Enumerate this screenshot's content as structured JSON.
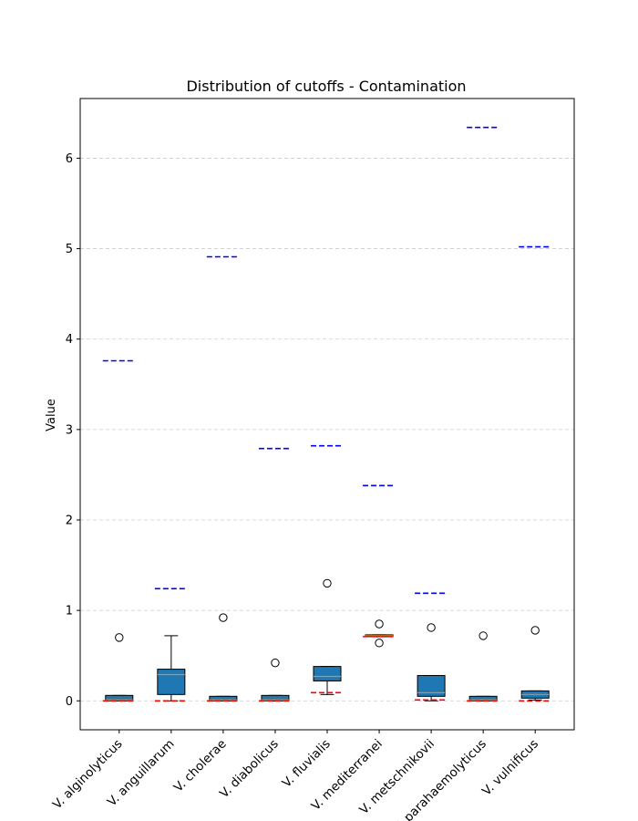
{
  "chart_data": {
    "type": "boxplot",
    "title": "Distribution of cutoffs - Contamination",
    "xlabel": "",
    "ylabel": "Value",
    "ylim": [
      -0.32,
      6.66
    ],
    "yticks": [
      0,
      1,
      2,
      3,
      4,
      5,
      6
    ],
    "grid": "y-dashed",
    "colors": {
      "box": "#1f77b4",
      "median": "#ff7f0e",
      "upper_line": "#0000ff",
      "lower_line": "#ff0000",
      "grid": "#cccccc"
    },
    "categories": [
      "V. alginolyticus",
      "V. anguillarum",
      "V. cholerae",
      "V. diabolicus",
      "V. fluvialis",
      "V. mediterranei",
      "V. metschnikovii",
      "V. parahaemolyticus",
      "V. vulnificus"
    ],
    "boxes": [
      {
        "whislo": 0.0,
        "q1": 0.0,
        "med": 0.01,
        "q3": 0.06,
        "whishi": 0.06,
        "fliers": [
          0.7
        ],
        "upper": 3.76,
        "lower": 0.0
      },
      {
        "whislo": 0.0,
        "q1": 0.07,
        "med": 0.29,
        "q3": 0.35,
        "whishi": 0.72,
        "fliers": [],
        "upper": 1.24,
        "lower": 0.0
      },
      {
        "whislo": 0.0,
        "q1": 0.0,
        "med": 0.01,
        "q3": 0.05,
        "whishi": 0.05,
        "fliers": [
          0.92
        ],
        "upper": 4.91,
        "lower": 0.0
      },
      {
        "whislo": 0.0,
        "q1": 0.0,
        "med": 0.01,
        "q3": 0.06,
        "whishi": 0.06,
        "fliers": [
          0.42
        ],
        "upper": 2.79,
        "lower": 0.0
      },
      {
        "whislo": 0.07,
        "q1": 0.22,
        "med": 0.27,
        "q3": 0.38,
        "whishi": 0.38,
        "fliers": [
          1.3
        ],
        "upper": 2.82,
        "lower": 0.09
      },
      {
        "whislo": 0.71,
        "q1": 0.71,
        "med": 0.72,
        "q3": 0.73,
        "whishi": 0.73,
        "fliers": [
          0.85,
          0.64
        ],
        "upper": 2.38,
        "lower": 0.71
      },
      {
        "whislo": 0.0,
        "q1": 0.05,
        "med": 0.09,
        "q3": 0.28,
        "whishi": 0.28,
        "fliers": [
          0.81
        ],
        "upper": 1.19,
        "lower": 0.01
      },
      {
        "whislo": 0.0,
        "q1": 0.0,
        "med": 0.01,
        "q3": 0.05,
        "whishi": 0.05,
        "fliers": [
          0.72
        ],
        "upper": 6.34,
        "lower": 0.0
      },
      {
        "whislo": 0.01,
        "q1": 0.03,
        "med": 0.07,
        "q3": 0.11,
        "whishi": 0.11,
        "fliers": [
          0.78
        ],
        "upper": 5.02,
        "lower": 0.0
      }
    ]
  }
}
